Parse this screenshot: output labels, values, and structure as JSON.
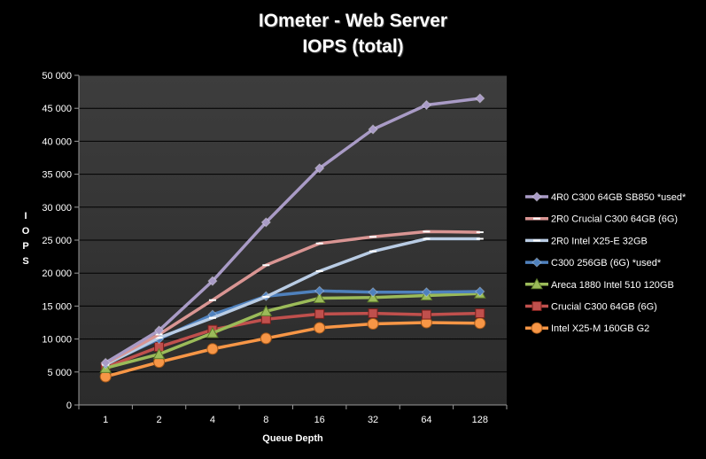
{
  "chart_data": {
    "type": "line",
    "title": "IOmeter - Web Server",
    "subtitle": "IOPS (total)",
    "xlabel": "Queue Depth",
    "ylabel": "IOPS",
    "categories": [
      "1",
      "2",
      "4",
      "8",
      "16",
      "32",
      "64",
      "128"
    ],
    "yticks": [
      "0",
      "5 000",
      "10 000",
      "15 000",
      "20 000",
      "25 000",
      "30 000",
      "35 000",
      "40 000",
      "45 000",
      "50 000"
    ],
    "ylim": [
      0,
      50000
    ],
    "grid": true,
    "legend_position": "right",
    "series": [
      {
        "name": "4R0 C300 64GB SB850 *used*",
        "color": "#a99bc6",
        "marker": "diamond",
        "values": [
          6400,
          11300,
          18800,
          27700,
          35900,
          41800,
          45500,
          46500
        ]
      },
      {
        "name": "2R0 Crucial C300 64GB (6G)",
        "color": "#d99593",
        "marker": "dash",
        "values": [
          6300,
          10700,
          15900,
          21200,
          24500,
          25500,
          26300,
          26200
        ]
      },
      {
        "name": "2R0 Intel X25-E 32GB",
        "color": "#b9cce4",
        "marker": "dash",
        "values": [
          6100,
          10200,
          13200,
          16400,
          20300,
          23300,
          25200,
          25200
        ]
      },
      {
        "name": "C300 256GB (6G) *used*",
        "color": "#4f81bd",
        "marker": "diamond",
        "values": [
          6200,
          10000,
          13700,
          16500,
          17300,
          17100,
          17100,
          17200
        ]
      },
      {
        "name": "Areca 1880 Intel 510 120GB",
        "color": "#9bbb59",
        "marker": "triangle",
        "values": [
          5600,
          7700,
          10900,
          14200,
          16200,
          16300,
          16600,
          16900
        ]
      },
      {
        "name": "Crucial C300 64GB (6G)",
        "color": "#c0504d",
        "marker": "square",
        "values": [
          5700,
          8800,
          11400,
          13000,
          13800,
          13900,
          13700,
          13900
        ]
      },
      {
        "name": "Intel X25-M 160GB G2",
        "color": "#f79646",
        "marker": "circle",
        "values": [
          4300,
          6500,
          8500,
          10100,
          11700,
          12300,
          12500,
          12400
        ]
      }
    ]
  }
}
